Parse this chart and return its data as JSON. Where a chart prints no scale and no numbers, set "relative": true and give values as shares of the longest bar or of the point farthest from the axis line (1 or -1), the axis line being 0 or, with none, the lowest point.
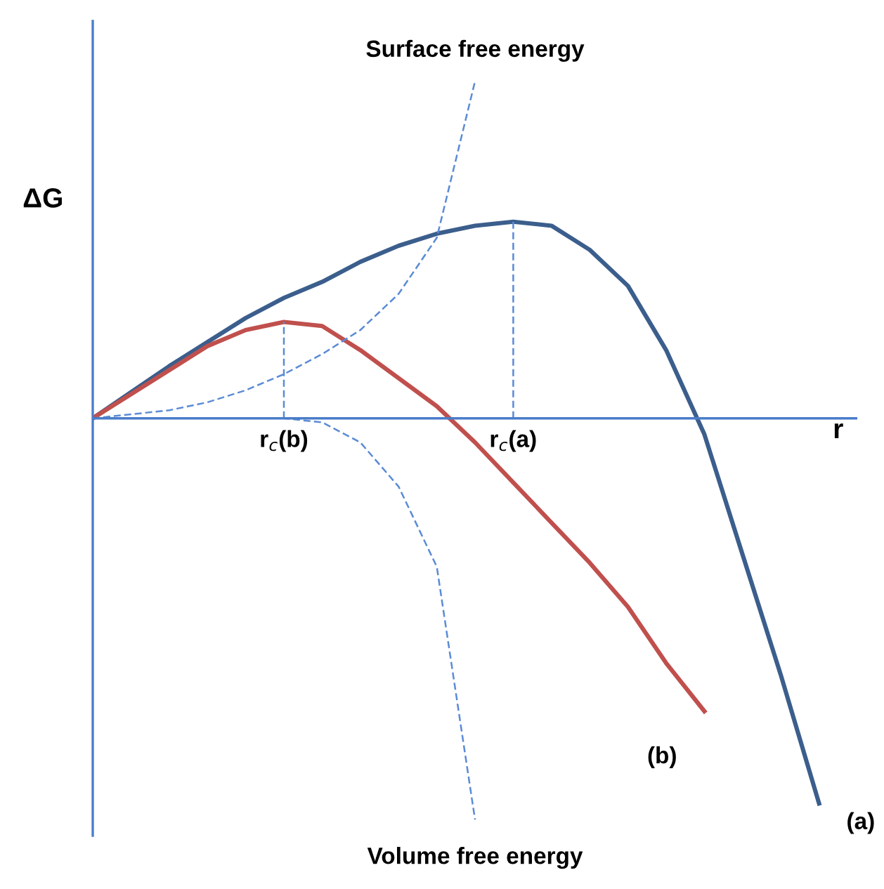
{
  "chart_data": {
    "type": "line",
    "relative": true,
    "xlabel": "r",
    "ylabel": "ΔG",
    "legend": false,
    "marker": "none",
    "categories": [
      null,
      null,
      null,
      null,
      null,
      null,
      null,
      null,
      null,
      null,
      null,
      null,
      null,
      null,
      null,
      null,
      null,
      null,
      null,
      null,
      null
    ],
    "series": [
      {
        "name": "(a)",
        "color": "#3b5e8c",
        "line_style": "solid",
        "values": [
          0,
          0.065,
          0.13,
          0.19,
          0.25,
          0.3,
          0.34,
          0.39,
          0.43,
          0.46,
          0.48,
          0.49,
          0.48,
          0.42,
          0.33,
          0.17,
          -0.04,
          -0.34,
          -0.64,
          -0.96,
          null
        ]
      },
      {
        "name": "(b)",
        "color": "#c0504d",
        "line_style": "solid",
        "values": [
          0,
          0.06,
          0.12,
          0.18,
          0.22,
          0.24,
          0.23,
          0.17,
          0.1,
          0.03,
          -0.06,
          -0.16,
          -0.26,
          -0.36,
          -0.47,
          -0.61,
          -0.73,
          null,
          null,
          null,
          null
        ]
      },
      {
        "name": "Surface free energy",
        "color": "#5b8bd5",
        "line_style": "dashed",
        "values": [
          0,
          0.01,
          0.02,
          0.04,
          0.07,
          0.11,
          0.16,
          0.22,
          0.31,
          0.45,
          0.84,
          null,
          null,
          null,
          null,
          null,
          null,
          null,
          null,
          null,
          null
        ]
      },
      {
        "name": "Volume free energy",
        "color": "#5b8bd5",
        "line_style": "dashed",
        "values": [
          0,
          0,
          0,
          0,
          0,
          0,
          -0.01,
          -0.06,
          -0.17,
          -0.37,
          -1.0,
          null,
          null,
          null,
          null,
          null,
          null,
          null,
          null,
          null,
          null
        ]
      }
    ],
    "ref_lines": [
      {
        "axis": "y",
        "value": 0,
        "color": "#4a7cc9",
        "line_style": "solid"
      }
    ],
    "annotations": [
      "r$_{c}$(a)",
      "r$_{c}$(b)"
    ]
  }
}
